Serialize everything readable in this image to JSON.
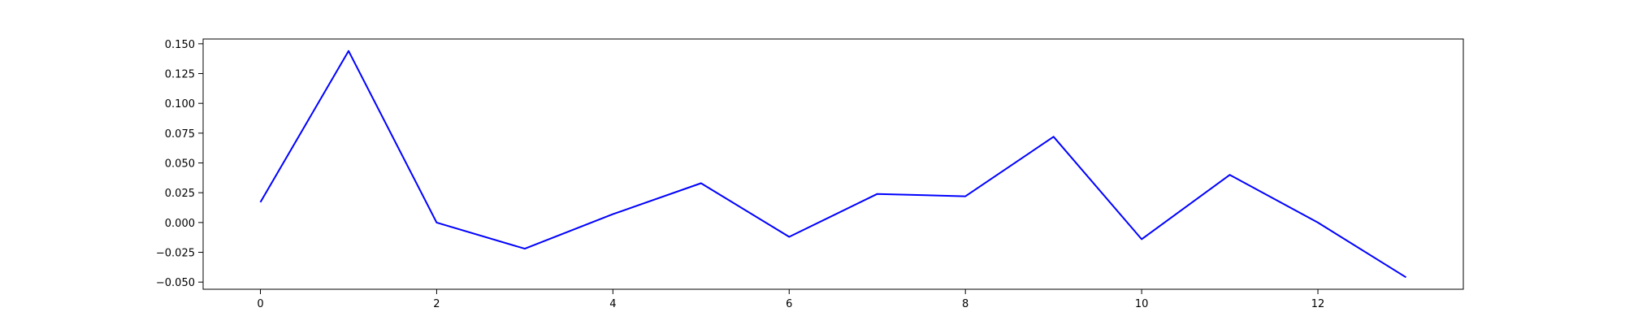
{
  "chart_data": {
    "type": "line",
    "title": "",
    "xlabel": "",
    "ylabel": "",
    "xlim": [
      -0.65,
      13.65
    ],
    "ylim": [
      -0.056,
      0.154
    ],
    "xticks": [
      0,
      2,
      4,
      6,
      8,
      10,
      12
    ],
    "yticks": [
      -0.05,
      -0.025,
      0.0,
      0.025,
      0.05,
      0.075,
      0.1,
      0.125,
      0.15
    ],
    "ytick_labels": [
      "−0.050",
      "−0.025",
      "0.000",
      "0.025",
      "0.050",
      "0.075",
      "0.100",
      "0.125",
      "0.150"
    ],
    "grid": false,
    "legend": "none",
    "series": [
      {
        "color": "#0000ff",
        "x": [
          0,
          1,
          2,
          3,
          4,
          5,
          6,
          7,
          8,
          9,
          10,
          11,
          12,
          13
        ],
        "values": [
          0.017,
          0.144,
          0.0,
          -0.022,
          0.007,
          0.033,
          -0.012,
          0.024,
          0.022,
          0.072,
          -0.014,
          0.04,
          0.0,
          -0.046
        ]
      }
    ]
  }
}
